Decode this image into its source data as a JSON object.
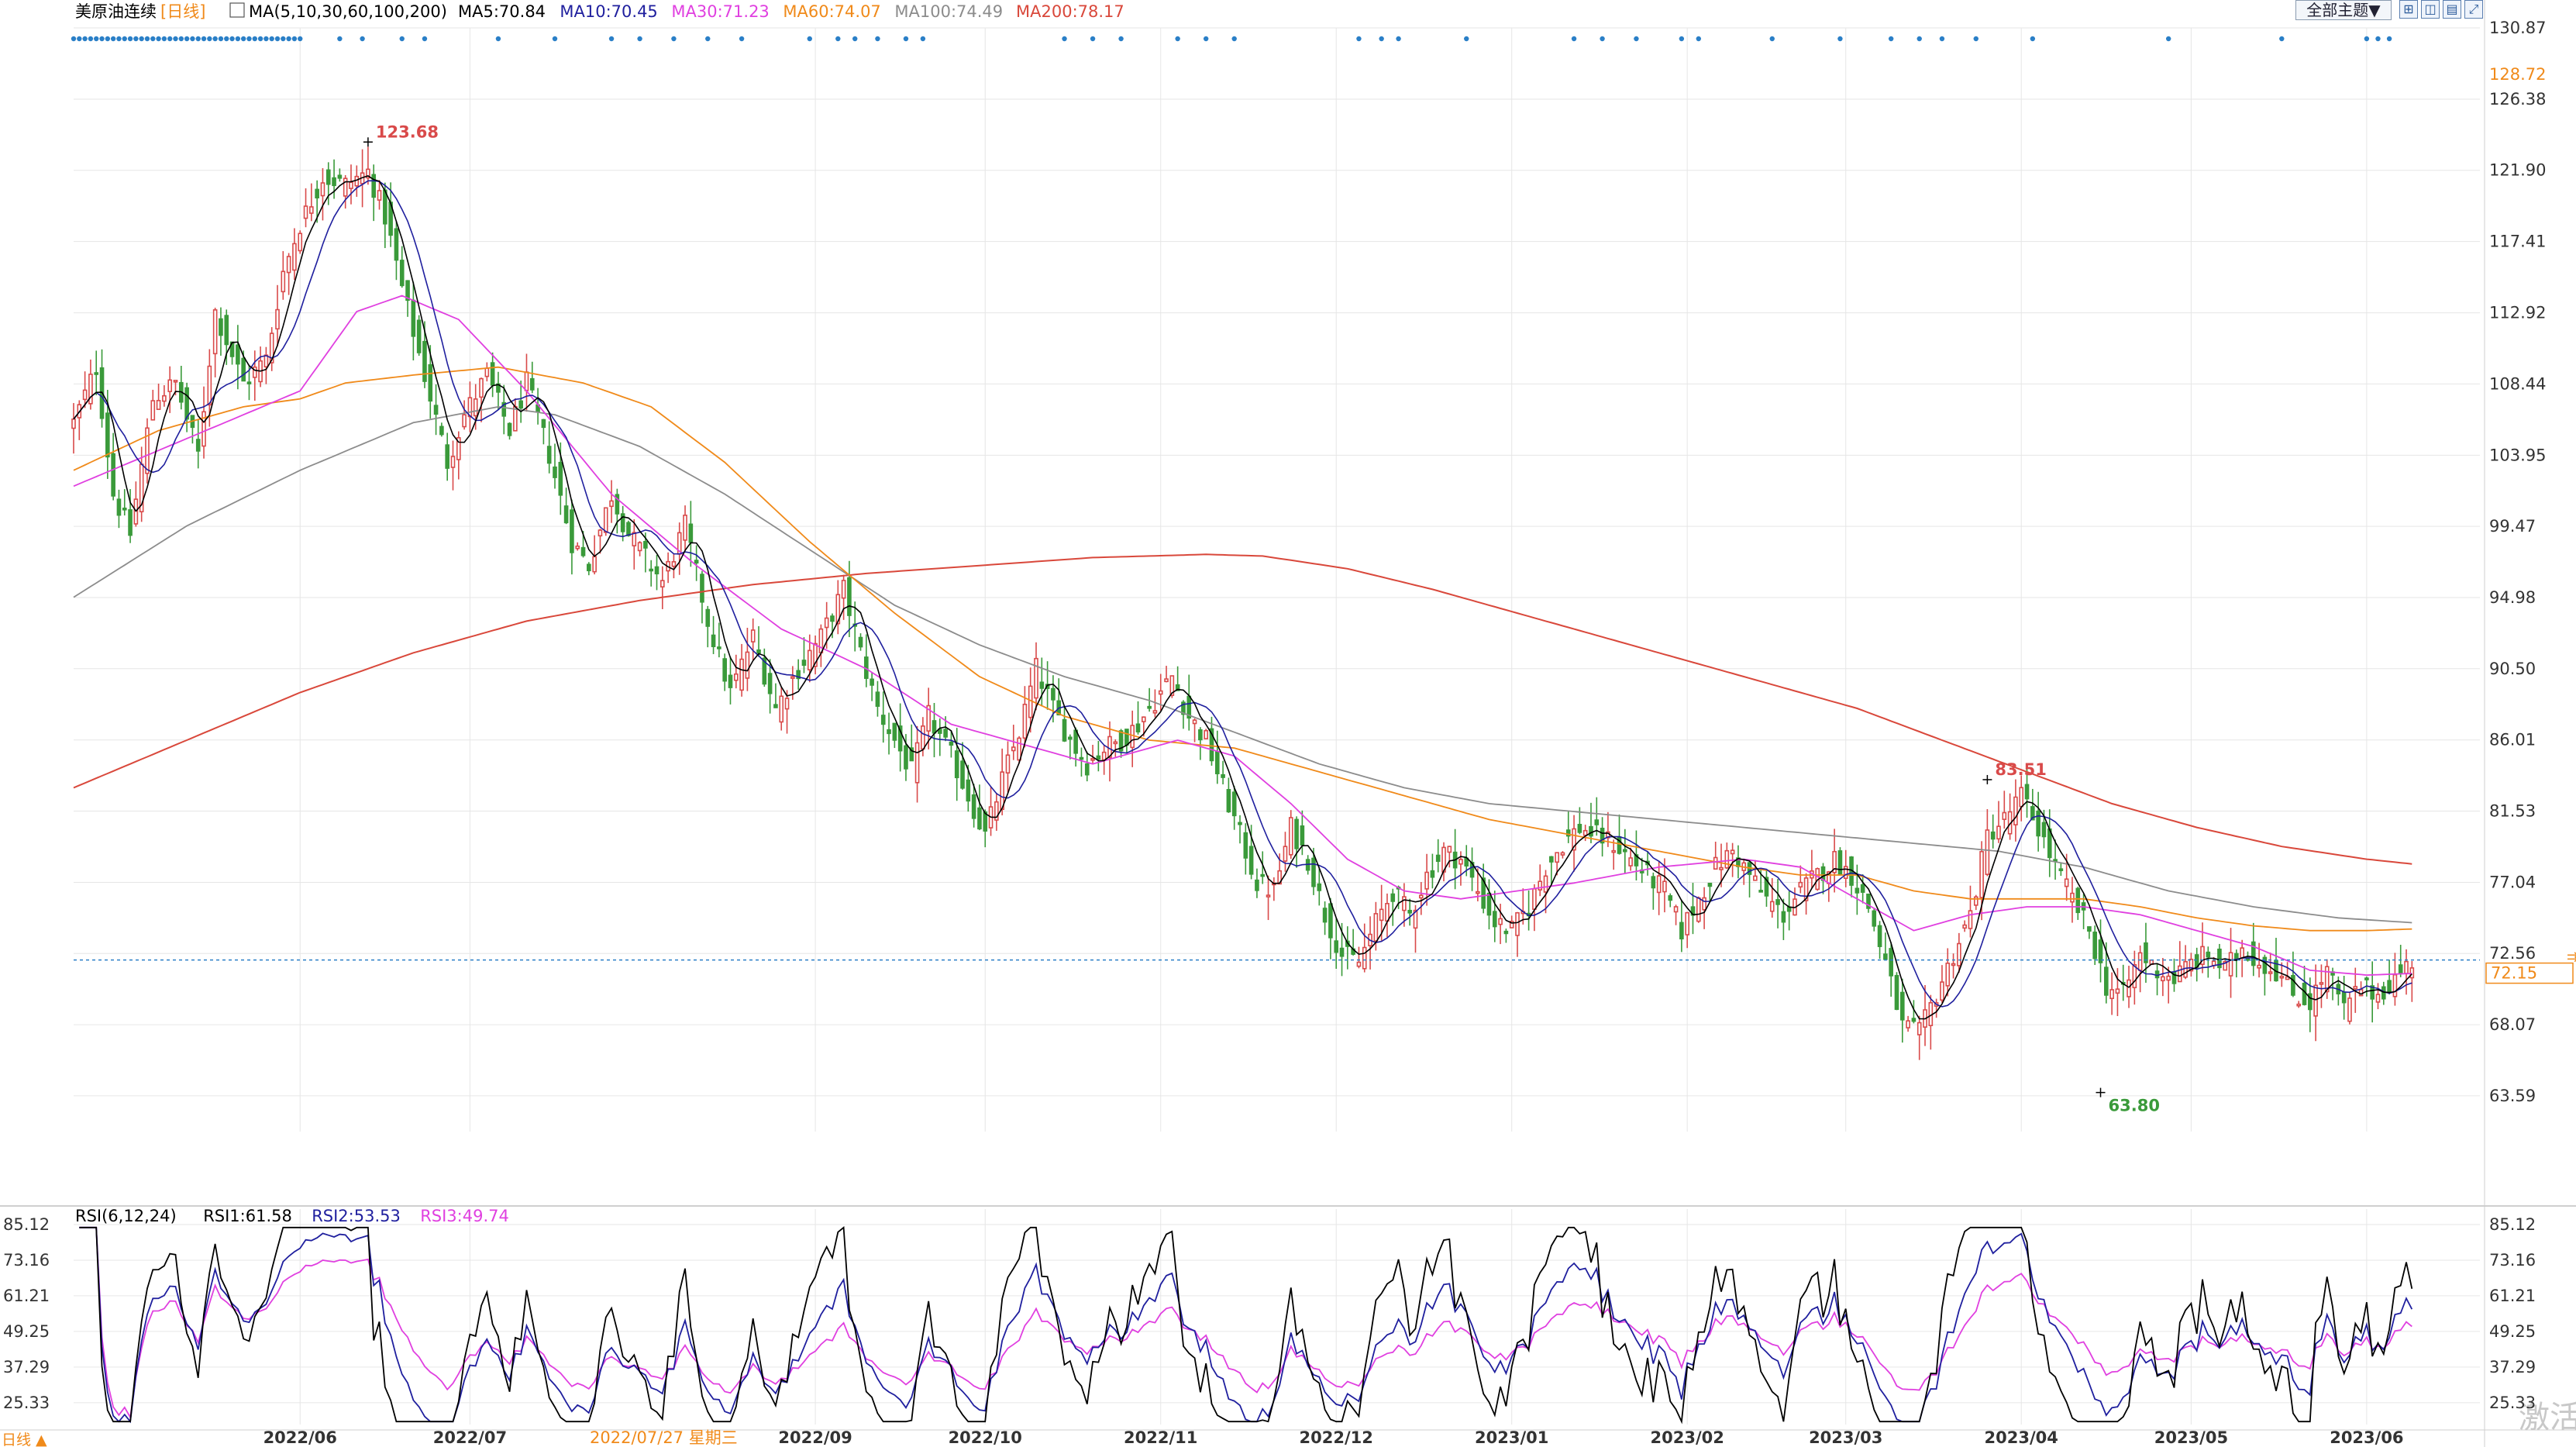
{
  "header": {
    "symbol": "美原油连续",
    "period": "[日线]",
    "ma_label": "MA(5,10,30,60,100,200)",
    "ma_values": [
      {
        "text": "MA5:70.84",
        "color": "#000000"
      },
      {
        "text": "MA10:70.45",
        "color": "#1f1f9e"
      },
      {
        "text": "MA30:71.23",
        "color": "#e040e0"
      },
      {
        "text": "MA60:74.07",
        "color": "#f08a1a"
      },
      {
        "text": "MA100:74.49",
        "color": "#8c8c8c"
      },
      {
        "text": "MA200:78.17",
        "color": "#d9483b"
      }
    ],
    "theme_button": "全部主题▼",
    "window_icons": [
      "grid-icon",
      "tile-icon",
      "panel-icon",
      "expand-icon"
    ]
  },
  "colors": {
    "up": "#d94a4a",
    "down": "#3a9a3a",
    "ma5": "#000000",
    "ma10": "#1f1f9e",
    "ma30": "#e040e0",
    "ma60": "#f08a1a",
    "ma100": "#8c8c8c",
    "ma200": "#d9483b",
    "rsi1": "#000000",
    "rsi2": "#1f1f9e",
    "rsi3": "#e040e0",
    "event_dot": "#2a7fc7",
    "current_line": "#2a7fc7",
    "grid": "#e6e6e6",
    "axis_text": "#333333"
  },
  "chart_data": [
    {
      "type": "candlestick",
      "title": "美原油连续 [日线]",
      "y_ticks": [
        "130.87",
        "126.38",
        "121.90",
        "117.41",
        "112.92",
        "108.44",
        "103.95",
        "99.47",
        "94.98",
        "90.50",
        "86.01",
        "81.53",
        "77.04",
        "72.56",
        "68.07",
        "63.59"
      ],
      "ylim": [
        61.34,
        130.87
      ],
      "x_ticks": [
        "2022/06",
        "2022/07",
        "2022/09",
        "2022/10",
        "2022/11",
        "2022/12",
        "2023/01",
        "2023/02",
        "2023/03",
        "2023/04",
        "2023/05",
        "2023/06"
      ],
      "x_tick_days": [
        0,
        30,
        91,
        121,
        152,
        183,
        214,
        245,
        273,
        304,
        334,
        365
      ],
      "day_range": [
        -40,
        385
      ],
      "crosshair_date": "2022/07/27 星期三",
      "crosshair_day": 56,
      "annotations": [
        {
          "text": "123.68",
          "kind": "high",
          "day": 12,
          "value": 123.68
        },
        {
          "text": "83.51",
          "kind": "high",
          "day": 298,
          "value": 83.51
        },
        {
          "text": "63.80",
          "kind": "low",
          "day": 318,
          "value": 63.8
        }
      ],
      "right_labels": [
        {
          "text": "128.72",
          "kind": "orange"
        },
        {
          "text": "72.15",
          "kind": "current",
          "value": 72.15
        }
      ],
      "price_anchors": [
        [
          -40,
          106.0
        ],
        [
          -36,
          109.5
        ],
        [
          -33,
          101.5
        ],
        [
          -30,
          99.0
        ],
        [
          -26,
          107.5
        ],
        [
          -22,
          108.5
        ],
        [
          -18,
          104.0
        ],
        [
          -15,
          113.0
        ],
        [
          -10,
          108.5
        ],
        [
          -6,
          110.0
        ],
        [
          -3,
          115.5
        ],
        [
          0,
          118.5
        ],
        [
          4,
          121.5
        ],
        [
          8,
          121.0
        ],
        [
          12,
          121.8
        ],
        [
          15,
          119.0
        ],
        [
          18,
          114.5
        ],
        [
          22,
          109.0
        ],
        [
          26,
          103.5
        ],
        [
          29,
          106.5
        ],
        [
          33,
          109.0
        ],
        [
          37,
          105.5
        ],
        [
          40,
          108.5
        ],
        [
          44,
          104.0
        ],
        [
          48,
          98.5
        ],
        [
          51,
          97.0
        ],
        [
          55,
          101.5
        ],
        [
          58,
          99.0
        ],
        [
          61,
          97.5
        ],
        [
          64,
          96.0
        ],
        [
          68,
          99.5
        ],
        [
          72,
          93.5
        ],
        [
          76,
          89.0
        ],
        [
          80,
          92.5
        ],
        [
          84,
          88.0
        ],
        [
          88,
          90.5
        ],
        [
          92,
          92.5
        ],
        [
          96,
          95.5
        ],
        [
          99,
          91.5
        ],
        [
          102,
          88.0
        ],
        [
          105,
          86.0
        ],
        [
          108,
          84.0
        ],
        [
          111,
          87.5
        ],
        [
          115,
          85.0
        ],
        [
          118,
          82.5
        ],
        [
          121,
          80.0
        ],
        [
          124,
          83.5
        ],
        [
          127,
          86.5
        ],
        [
          130,
          90.5
        ],
        [
          133,
          88.0
        ],
        [
          136,
          86.0
        ],
        [
          139,
          84.5
        ],
        [
          142,
          85.5
        ],
        [
          145,
          86.0
        ],
        [
          148,
          87.0
        ],
        [
          151,
          88.5
        ],
        [
          154,
          90.0
        ],
        [
          157,
          87.5
        ],
        [
          160,
          86.0
        ],
        [
          163,
          83.0
        ],
        [
          166,
          80.0
        ],
        [
          169,
          77.0
        ],
        [
          172,
          76.5
        ],
        [
          175,
          80.5
        ],
        [
          178,
          78.5
        ],
        [
          181,
          75.0
        ],
        [
          184,
          72.5
        ],
        [
          187,
          72.0
        ],
        [
          190,
          74.5
        ],
        [
          193,
          76.5
        ],
        [
          196,
          75.0
        ],
        [
          199,
          77.5
        ],
        [
          202,
          79.0
        ],
        [
          205,
          78.5
        ],
        [
          208,
          76.5
        ],
        [
          211,
          74.5
        ],
        [
          214,
          74.0
        ],
        [
          217,
          75.5
        ],
        [
          220,
          78.0
        ],
        [
          223,
          79.5
        ],
        [
          226,
          80.5
        ],
        [
          229,
          80.0
        ],
        [
          232,
          79.5
        ],
        [
          235,
          78.5
        ],
        [
          238,
          77.5
        ],
        [
          241,
          76.5
        ],
        [
          244,
          74.0
        ],
        [
          247,
          76.0
        ],
        [
          250,
          78.0
        ],
        [
          253,
          79.0
        ],
        [
          256,
          77.5
        ],
        [
          259,
          76.0
        ],
        [
          262,
          75.0
        ],
        [
          265,
          76.5
        ],
        [
          268,
          77.5
        ],
        [
          271,
          78.5
        ],
        [
          274,
          77.5
        ],
        [
          277,
          75.5
        ],
        [
          280,
          72.0
        ],
        [
          283,
          68.0
        ],
        [
          286,
          67.5
        ],
        [
          289,
          70.0
        ],
        [
          292,
          72.5
        ],
        [
          295,
          75.0
        ],
        [
          298,
          80.0
        ],
        [
          301,
          81.0
        ],
        [
          304,
          82.5
        ],
        [
          307,
          80.5
        ],
        [
          310,
          78.0
        ],
        [
          313,
          76.0
        ],
        [
          316,
          74.0
        ],
        [
          319,
          70.5
        ],
        [
          322,
          70.0
        ],
        [
          325,
          72.5
        ],
        [
          328,
          71.5
        ],
        [
          331,
          71.0
        ],
        [
          334,
          72.0
        ],
        [
          337,
          72.5
        ],
        [
          340,
          71.5
        ],
        [
          343,
          73.0
        ],
        [
          346,
          72.0
        ],
        [
          349,
          71.5
        ],
        [
          352,
          70.0
        ],
        [
          355,
          69.5
        ],
        [
          358,
          71.5
        ],
        [
          361,
          69.0
        ],
        [
          364,
          70.5
        ],
        [
          367,
          70.0
        ],
        [
          370,
          71.0
        ],
        [
          373,
          72.1
        ]
      ],
      "ma_anchors": {
        "ma30": [
          [
            -40,
            102.0
          ],
          [
            -20,
            105.0
          ],
          [
            0,
            108.0
          ],
          [
            10,
            113.0
          ],
          [
            18,
            114.0
          ],
          [
            28,
            112.5
          ],
          [
            40,
            108.0
          ],
          [
            55,
            101.5
          ],
          [
            70,
            97.0
          ],
          [
            85,
            93.0
          ],
          [
            100,
            90.5
          ],
          [
            115,
            87.0
          ],
          [
            125,
            86.0
          ],
          [
            140,
            84.5
          ],
          [
            155,
            86.0
          ],
          [
            165,
            85.0
          ],
          [
            175,
            82.0
          ],
          [
            185,
            78.5
          ],
          [
            195,
            76.5
          ],
          [
            205,
            76.0
          ],
          [
            215,
            76.5
          ],
          [
            225,
            77.0
          ],
          [
            240,
            78.0
          ],
          [
            255,
            78.5
          ],
          [
            265,
            78.0
          ],
          [
            275,
            76.0
          ],
          [
            285,
            74.0
          ],
          [
            295,
            75.0
          ],
          [
            305,
            75.5
          ],
          [
            315,
            75.5
          ],
          [
            325,
            75.0
          ],
          [
            335,
            74.0
          ],
          [
            345,
            73.0
          ],
          [
            355,
            71.5
          ],
          [
            365,
            71.2
          ],
          [
            373,
            71.3
          ]
        ],
        "ma60": [
          [
            -40,
            103.0
          ],
          [
            -25,
            105.5
          ],
          [
            -10,
            107.0
          ],
          [
            0,
            107.5
          ],
          [
            8,
            108.5
          ],
          [
            20,
            109.0
          ],
          [
            35,
            109.5
          ],
          [
            50,
            108.5
          ],
          [
            62,
            107.0
          ],
          [
            75,
            103.5
          ],
          [
            90,
            98.5
          ],
          [
            105,
            94.0
          ],
          [
            120,
            90.0
          ],
          [
            135,
            87.5
          ],
          [
            150,
            86.0
          ],
          [
            165,
            85.5
          ],
          [
            180,
            84.0
          ],
          [
            195,
            82.5
          ],
          [
            210,
            81.0
          ],
          [
            225,
            80.0
          ],
          [
            240,
            79.0
          ],
          [
            255,
            78.0
          ],
          [
            265,
            77.5
          ],
          [
            275,
            77.5
          ],
          [
            285,
            76.5
          ],
          [
            295,
            76.0
          ],
          [
            305,
            76.0
          ],
          [
            315,
            76.0
          ],
          [
            325,
            75.5
          ],
          [
            335,
            74.8
          ],
          [
            345,
            74.3
          ],
          [
            355,
            74.0
          ],
          [
            365,
            74.0
          ],
          [
            373,
            74.1
          ]
        ],
        "ma100": [
          [
            -40,
            95.0
          ],
          [
            -20,
            99.5
          ],
          [
            0,
            103.0
          ],
          [
            20,
            106.0
          ],
          [
            35,
            107.0
          ],
          [
            45,
            106.5
          ],
          [
            60,
            104.5
          ],
          [
            75,
            101.5
          ],
          [
            90,
            98.0
          ],
          [
            105,
            94.5
          ],
          [
            120,
            92.0
          ],
          [
            135,
            90.0
          ],
          [
            150,
            88.5
          ],
          [
            165,
            86.5
          ],
          [
            180,
            84.5
          ],
          [
            195,
            83.0
          ],
          [
            210,
            82.0
          ],
          [
            225,
            81.5
          ],
          [
            240,
            81.0
          ],
          [
            255,
            80.5
          ],
          [
            270,
            80.0
          ],
          [
            285,
            79.5
          ],
          [
            300,
            79.0
          ],
          [
            315,
            78.0
          ],
          [
            330,
            76.5
          ],
          [
            345,
            75.5
          ],
          [
            360,
            74.8
          ],
          [
            373,
            74.5
          ]
        ],
        "ma200": [
          [
            -40,
            83.0
          ],
          [
            -20,
            86.0
          ],
          [
            0,
            89.0
          ],
          [
            20,
            91.5
          ],
          [
            40,
            93.5
          ],
          [
            60,
            94.8
          ],
          [
            80,
            95.8
          ],
          [
            100,
            96.5
          ],
          [
            120,
            97.0
          ],
          [
            140,
            97.5
          ],
          [
            160,
            97.7
          ],
          [
            170,
            97.6
          ],
          [
            185,
            96.8
          ],
          [
            200,
            95.5
          ],
          [
            215,
            94.0
          ],
          [
            230,
            92.5
          ],
          [
            245,
            91.0
          ],
          [
            260,
            89.5
          ],
          [
            275,
            88.0
          ],
          [
            290,
            86.0
          ],
          [
            305,
            84.0
          ],
          [
            320,
            82.0
          ],
          [
            335,
            80.5
          ],
          [
            350,
            79.3
          ],
          [
            365,
            78.5
          ],
          [
            373,
            78.2
          ]
        ]
      }
    },
    {
      "type": "line",
      "title": "RSI(6,12,24)",
      "legend": [
        {
          "text": "RSI(6,12,24)",
          "color": "#000000"
        },
        {
          "text": "RSI1:61.58",
          "color": "#000000"
        },
        {
          "text": "RSI2:53.53",
          "color": "#1f1f9e"
        },
        {
          "text": "RSI3:49.74",
          "color": "#e040e0"
        }
      ],
      "y_ticks": [
        "85.12",
        "73.16",
        "61.21",
        "49.25",
        "37.29",
        "25.33"
      ],
      "ylim": [
        18.0,
        85.12
      ],
      "series": [
        {
          "name": "RSI1",
          "value": 61.58
        },
        {
          "name": "RSI2",
          "value": 53.53
        },
        {
          "name": "RSI3",
          "value": 49.74
        }
      ]
    }
  ],
  "bottom_labels": {
    "period": "日线 ▲",
    "watermark": "激活"
  }
}
